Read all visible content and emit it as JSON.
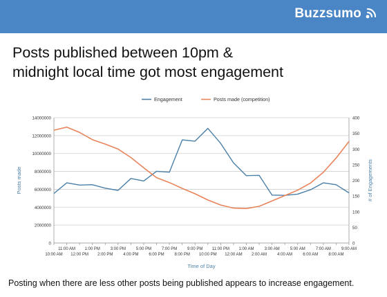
{
  "brand": {
    "name": "Buzzsumo",
    "logo_icon": "signal-waves-icon",
    "banner_color": "#4a86c5"
  },
  "headline": {
    "line1": "Posts published between 10pm &",
    "line2": "midnight local time got most engagement"
  },
  "footer": {
    "text": "Posting when there are less other posts being published appears to increase engagement."
  },
  "chart_data": {
    "type": "line",
    "title": "",
    "xlabel": "Time of Day",
    "ylabel_left": "Posts made",
    "ylabel_right": "# of Engagements",
    "legend_position": "top-center",
    "grid": true,
    "categories": [
      "10:00 AM",
      "11:00 AM",
      "12:00 PM",
      "1:00 PM",
      "2:00 PM",
      "3:00 PM",
      "4:00 PM",
      "5:00 PM",
      "6:00 PM",
      "7:00 PM",
      "8:00 PM",
      "9:00 PM",
      "10:00 PM",
      "11:00 PM",
      "12:00 AM",
      "1:00 AM",
      "2:00 AM",
      "3:00 AM",
      "4:00 AM",
      "5:00 AM",
      "6:00 AM",
      "7:00 AM",
      "8:00 AM",
      "9:00 AM"
    ],
    "left_axis": {
      "min": 0,
      "max": 14000000,
      "step": 2000000,
      "tick_labels": [
        "0",
        "2000000",
        "4000000",
        "6000000",
        "8000000",
        "10000000",
        "12000000",
        "14000000"
      ]
    },
    "right_axis": {
      "min": 0,
      "max": 400,
      "step": 50,
      "tick_labels": [
        "0",
        "50",
        "100",
        "150",
        "200",
        "250",
        "300",
        "350",
        "400"
      ]
    },
    "series": [
      {
        "name": "Engagement",
        "axis": "right",
        "color": "#4a7fa7",
        "values": [
          158,
          192,
          185,
          186,
          175,
          168,
          206,
          198,
          229,
          226,
          329,
          325,
          366,
          318,
          256,
          215,
          216,
          153,
          152,
          156,
          170,
          192,
          186,
          160
        ]
      },
      {
        "name": "Posts made (competition)",
        "axis": "left",
        "color": "#e8845a",
        "values": [
          12600000,
          12950000,
          12350000,
          11550000,
          11050000,
          10500000,
          9550000,
          8400000,
          7300000,
          6750000,
          6100000,
          5500000,
          4800000,
          4250000,
          3900000,
          3850000,
          4100000,
          4700000,
          5300000,
          5900000,
          6700000,
          7900000,
          9500000,
          11350000
        ]
      }
    ]
  }
}
